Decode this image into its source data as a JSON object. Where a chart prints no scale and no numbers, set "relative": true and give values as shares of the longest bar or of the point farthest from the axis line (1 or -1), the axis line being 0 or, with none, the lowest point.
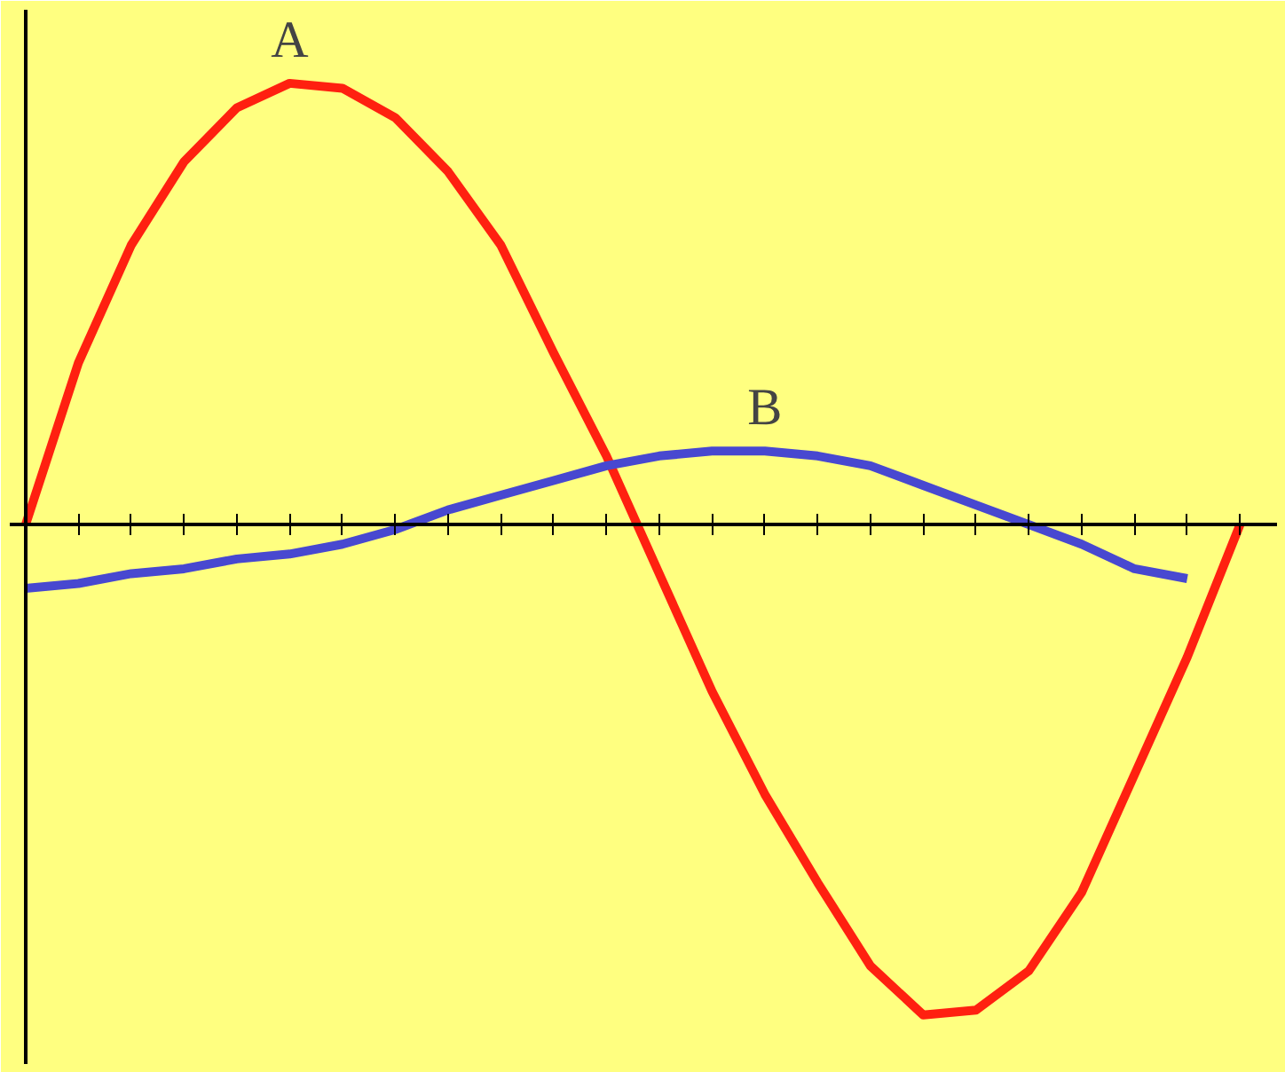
{
  "chart_data": {
    "type": "line",
    "relative": true,
    "categories": [
      null,
      null,
      null,
      null,
      null,
      null,
      null,
      null,
      null,
      null,
      null,
      null,
      null,
      null,
      null,
      null,
      null,
      null,
      null,
      null,
      null,
      null,
      null,
      null
    ],
    "series": [
      {
        "color": "#ff2010",
        "values": [
          0,
          0.33,
          0.57,
          0.74,
          0.85,
          0.9,
          0.89,
          0.83,
          0.72,
          0.57,
          0.35,
          0.14,
          -0.1,
          -0.34,
          -0.55,
          -0.73,
          -0.9,
          -1,
          -0.99,
          -0.91,
          -0.75,
          -0.51,
          -0.27,
          0
        ]
      },
      {
        "color": "#4848d0",
        "values": [
          -0.13,
          -0.12,
          -0.1,
          -0.09,
          -0.07,
          -0.06,
          -0.04,
          -0.01,
          0.03,
          0.06,
          0.09,
          0.12,
          0.14,
          0.15,
          0.15,
          0.14,
          0.12,
          0.08,
          0.04,
          0,
          -0.04,
          -0.09,
          -0.11,
          null
        ]
      }
    ],
    "annotations": [
      "A",
      "B"
    ],
    "grid": false,
    "marker": "none",
    "line_style": "solid"
  }
}
